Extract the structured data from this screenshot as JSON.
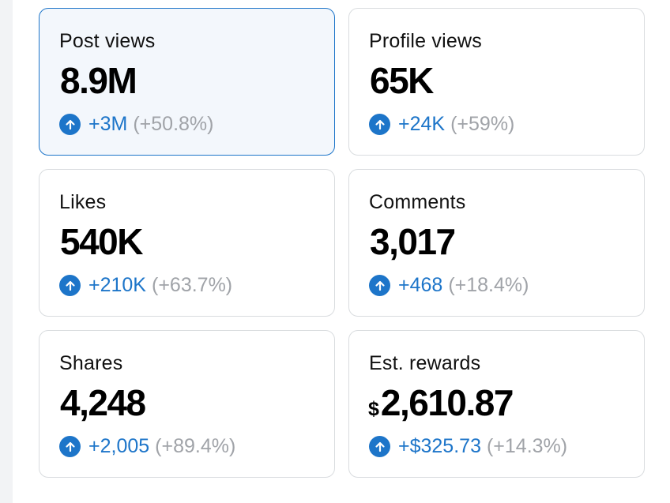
{
  "cards": [
    {
      "label": "Post views",
      "currency": "",
      "value": "8.9M",
      "delta": "+3M",
      "pct": "(+50.8%)",
      "selected": true
    },
    {
      "label": "Profile views",
      "currency": "",
      "value": "65K",
      "delta": "+24K",
      "pct": "(+59%)",
      "selected": false
    },
    {
      "label": "Likes",
      "currency": "",
      "value": "540K",
      "delta": "+210K",
      "pct": "(+63.7%)",
      "selected": false
    },
    {
      "label": "Comments",
      "currency": "",
      "value": "3,017",
      "delta": "+468",
      "pct": "(+18.4%)",
      "selected": false
    },
    {
      "label": "Shares",
      "currency": "",
      "value": "4,248",
      "delta": "+2,005",
      "pct": "(+89.4%)",
      "selected": false
    },
    {
      "label": "Est. rewards",
      "currency": "$",
      "value": "2,610.87",
      "delta": "+$325.73",
      "pct": "(+14.3%)",
      "selected": false
    }
  ],
  "colors": {
    "accent": "#1d75c9",
    "muted": "#a0a3a8",
    "border": "#d9dcdf",
    "selected_bg": "#f3f7fc"
  },
  "icons": {
    "trend": "arrow-up-circle-icon"
  }
}
